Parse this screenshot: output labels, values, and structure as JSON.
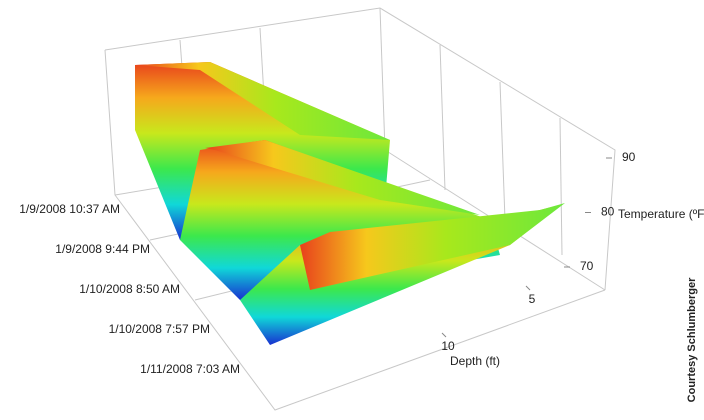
{
  "chart_data": {
    "type": "surface3d",
    "categories": [
      "1/9/2008 10:37 AM",
      "1/9/2008 9:44 PM",
      "1/10/2008 8:50 AM",
      "1/10/2008 7:57 PM",
      "1/11/2008 7:03 AM"
    ],
    "x_label": "Depth (ft)",
    "xticks": [
      5,
      10
    ],
    "z_label": "Temperature (ºF)",
    "zticks": [
      70,
      80,
      90
    ],
    "credit": "Courtesy Schlumberger"
  }
}
